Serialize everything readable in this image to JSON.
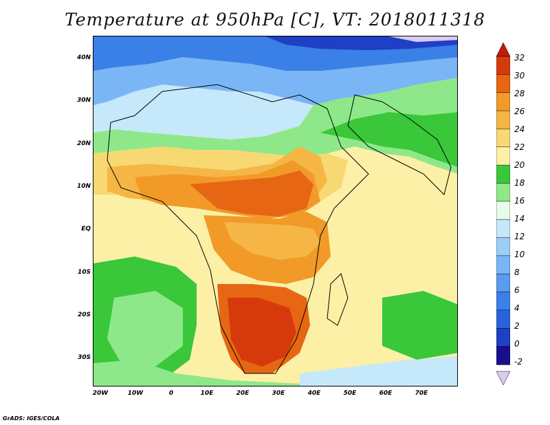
{
  "title": "Temperature at 950hPa [C], VT: 2018011318",
  "credit": "GrADS: IGES/COLA",
  "axes": {
    "lat_labels": [
      "40N",
      "30N",
      "20N",
      "10N",
      "EQ",
      "10S",
      "20S",
      "30S"
    ],
    "lon_labels": [
      "20W",
      "10W",
      "0",
      "10E",
      "20E",
      "30E",
      "40E",
      "50E",
      "60E",
      "70E"
    ]
  },
  "colorbar": {
    "labels": [
      "32",
      "30",
      "28",
      "26",
      "24",
      "22",
      "20",
      "18",
      "16",
      "14",
      "12",
      "10",
      "8",
      "6",
      "4",
      "2",
      "0",
      "-2"
    ],
    "colors": {
      "c_lt_m2": "#d8ccf0",
      "c_m2_0": "#1a0f8a",
      "c_0_2": "#1f3fc4",
      "c_2_4": "#2a64dc",
      "c_4_6": "#3a80e6",
      "c_6_8": "#5a9aef",
      "c_8_10": "#7ab6f5",
      "c_10_12": "#9ccdf8",
      "c_12_14": "#c5e8fb",
      "c_14_16": "#e8fae8",
      "c_16_18": "#8ee889",
      "c_18_20": "#3ac73a",
      "c_20_22": "#fbf0a6",
      "c_22_24": "#f8d873",
      "c_24_26": "#f5b646",
      "c_26_28": "#f19a28",
      "c_28_30": "#e66614",
      "c_30_32": "#d63a0c",
      "c_gt_32": "#c41a0a"
    }
  }
}
